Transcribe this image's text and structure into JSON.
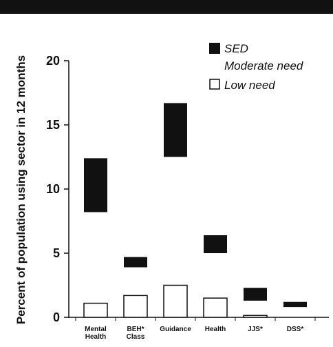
{
  "chart_data": {
    "type": "bar",
    "ylabel": "Percent of population using sector in 12 months",
    "ylim": [
      0,
      20
    ],
    "yticks": [
      0,
      5,
      10,
      15,
      20
    ],
    "categories": [
      {
        "lines": [
          "Mental",
          "Health"
        ]
      },
      {
        "lines": [
          "BEH*",
          "Class"
        ]
      },
      {
        "lines": [
          "Guidance"
        ]
      },
      {
        "lines": [
          "Health"
        ]
      },
      {
        "lines": [
          "JJS*"
        ]
      },
      {
        "lines": [
          "DSS*"
        ]
      }
    ],
    "series": [
      {
        "name": "SED Moderate need",
        "legend_lines": [
          "SED",
          "Moderate need"
        ],
        "style": "filled",
        "color": "#111111",
        "ranges": [
          [
            8.2,
            12.4
          ],
          [
            3.9,
            4.7
          ],
          [
            12.5,
            16.7
          ],
          [
            5.0,
            6.4
          ],
          [
            1.3,
            2.3
          ],
          [
            0.8,
            1.2
          ]
        ]
      },
      {
        "name": "Low need",
        "legend_lines": [
          "Low need"
        ],
        "style": "outline",
        "color": "#111111",
        "values": [
          1.1,
          1.7,
          2.5,
          1.5,
          0.15,
          0
        ]
      }
    ],
    "legend_position": "top-right",
    "grid": false
  }
}
